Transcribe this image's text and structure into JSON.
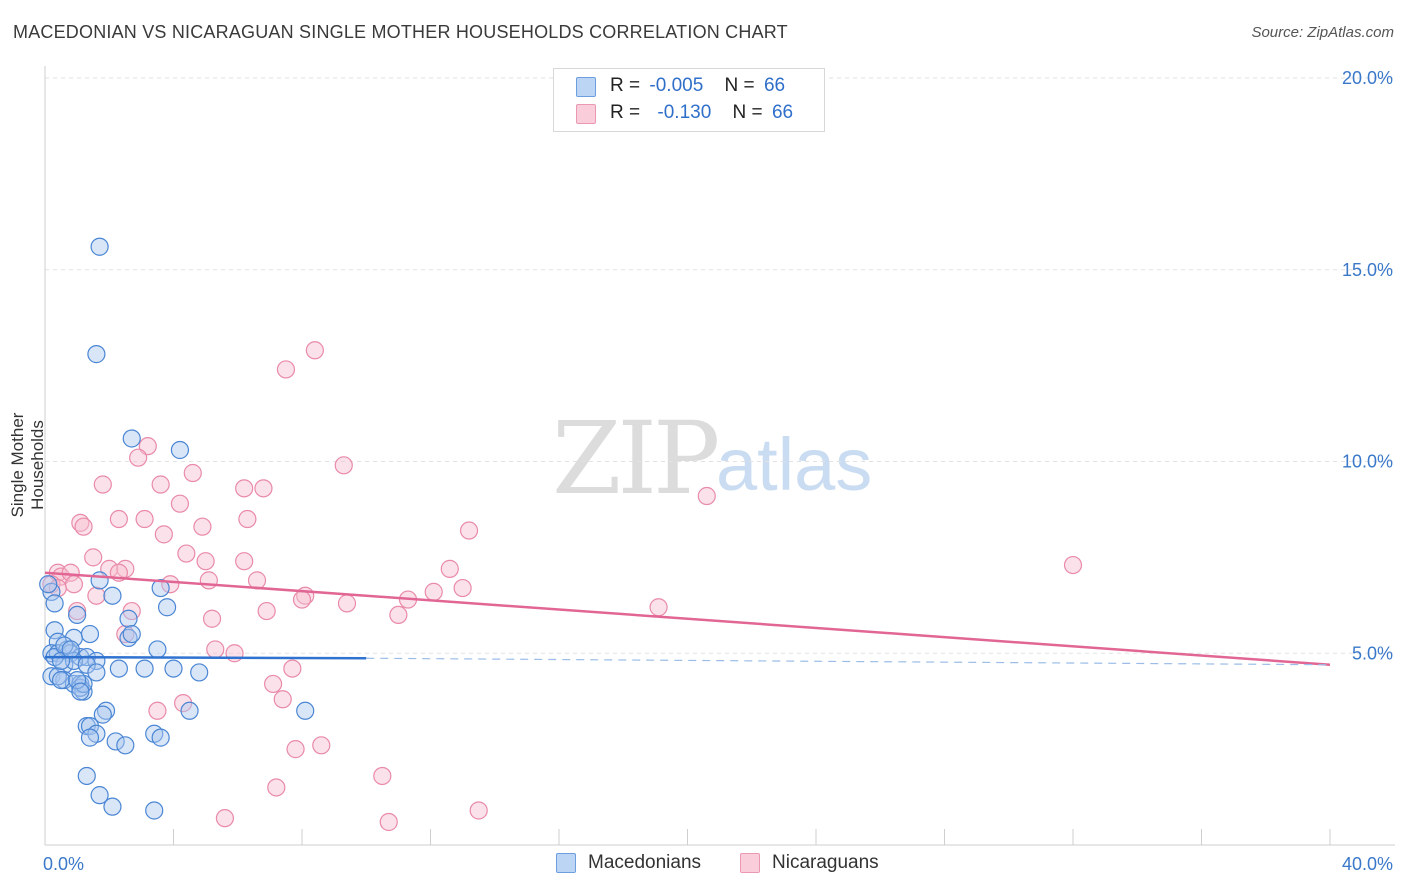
{
  "title": "MACEDONIAN VS NICARAGUAN SINGLE MOTHER HOUSEHOLDS CORRELATION CHART",
  "source": "Source: ZipAtlas.com",
  "watermark": {
    "zip": "ZIP",
    "atlas": "atlas"
  },
  "legend": {
    "row1": {
      "r_label": "R =",
      "r_value": "-0.005",
      "n_label": "N =",
      "n_value": "66"
    },
    "row2": {
      "r_label": "R =",
      "r_value": "-0.130",
      "n_label": "N =",
      "n_value": "66"
    }
  },
  "bottom_legend": {
    "macedonians": "Macedonians",
    "nicaraguans": "Nicaraguans"
  },
  "colors": {
    "blue_fill": "#aac8ef",
    "blue_stroke": "#4a86d4",
    "blue_line": "#2f72d0",
    "pink_fill": "#f7bfd0",
    "pink_stroke": "#e98aa8",
    "pink_line": "#e26694",
    "tick": "#3a78c9"
  },
  "chart_data": {
    "type": "scatter",
    "title": "MACEDONIAN VS NICARAGUAN SINGLE MOTHER HOUSEHOLDS CORRELATION CHART",
    "xlabel": "",
    "ylabel": "Single Mother Households",
    "xlim": [
      0,
      40
    ],
    "ylim": [
      0,
      20
    ],
    "x_tick_labels": [
      "0.0%",
      "40.0%"
    ],
    "y_ticks": [
      5,
      10,
      15,
      20
    ],
    "y_tick_labels": [
      "5.0%",
      "10.0%",
      "15.0%",
      "20.0%"
    ],
    "series": [
      {
        "name": "Macedonians",
        "r": -0.005,
        "n": 66,
        "trend": {
          "x0": 0,
          "y0": 4.9,
          "x1": 10,
          "y1": 4.87,
          "dashed_to_x": 40,
          "dashed_to_y": 4.7
        },
        "points": [
          [
            1.7,
            15.6
          ],
          [
            1.6,
            12.8
          ],
          [
            2.7,
            10.6
          ],
          [
            4.2,
            10.3
          ],
          [
            0.2,
            6.6
          ],
          [
            0.3,
            6.3
          ],
          [
            0.1,
            6.8
          ],
          [
            1.7,
            6.9
          ],
          [
            2.1,
            6.5
          ],
          [
            3.6,
            6.7
          ],
          [
            3.8,
            6.2
          ],
          [
            1.0,
            6.0
          ],
          [
            2.6,
            5.9
          ],
          [
            0.3,
            5.6
          ],
          [
            0.9,
            5.4
          ],
          [
            0.4,
            5.3
          ],
          [
            1.4,
            5.5
          ],
          [
            0.2,
            5.0
          ],
          [
            0.4,
            5.0
          ],
          [
            0.7,
            5.1
          ],
          [
            0.8,
            5.0
          ],
          [
            1.1,
            4.9
          ],
          [
            1.3,
            4.9
          ],
          [
            1.6,
            4.8
          ],
          [
            2.6,
            5.4
          ],
          [
            3.5,
            5.1
          ],
          [
            0.6,
            4.7
          ],
          [
            0.9,
            4.8
          ],
          [
            1.3,
            4.7
          ],
          [
            2.3,
            4.6
          ],
          [
            3.1,
            4.6
          ],
          [
            4.0,
            4.6
          ],
          [
            4.8,
            4.5
          ],
          [
            1.6,
            4.5
          ],
          [
            0.2,
            4.4
          ],
          [
            0.6,
            4.3
          ],
          [
            0.4,
            4.4
          ],
          [
            0.9,
            4.2
          ],
          [
            1.1,
            4.2
          ],
          [
            1.2,
            4.0
          ],
          [
            1.1,
            4.1
          ],
          [
            1.2,
            4.2
          ],
          [
            1.9,
            3.5
          ],
          [
            1.8,
            3.4
          ],
          [
            4.5,
            3.5
          ],
          [
            8.1,
            3.5
          ],
          [
            1.3,
            3.1
          ],
          [
            1.4,
            3.1
          ],
          [
            1.6,
            2.9
          ],
          [
            1.4,
            2.8
          ],
          [
            2.2,
            2.7
          ],
          [
            2.5,
            2.6
          ],
          [
            3.4,
            2.9
          ],
          [
            3.6,
            2.8
          ],
          [
            1.3,
            1.8
          ],
          [
            1.7,
            1.3
          ],
          [
            2.1,
            1.0
          ],
          [
            3.4,
            0.9
          ],
          [
            0.5,
            4.3
          ],
          [
            0.3,
            4.9
          ],
          [
            1.0,
            4.3
          ],
          [
            0.6,
            5.2
          ],
          [
            2.7,
            5.5
          ],
          [
            0.5,
            4.8
          ],
          [
            1.1,
            4.0
          ],
          [
            0.8,
            5.1
          ]
        ]
      },
      {
        "name": "Nicaraguans",
        "r": -0.13,
        "n": 66,
        "trend": {
          "x0": 0,
          "y0": 7.1,
          "x1": 40,
          "y1": 4.7
        },
        "points": [
          [
            8.4,
            12.9
          ],
          [
            7.5,
            12.4
          ],
          [
            3.2,
            10.4
          ],
          [
            2.9,
            10.1
          ],
          [
            9.3,
            9.9
          ],
          [
            4.6,
            9.7
          ],
          [
            1.8,
            9.4
          ],
          [
            3.6,
            9.4
          ],
          [
            6.2,
            9.3
          ],
          [
            6.8,
            9.3
          ],
          [
            20.6,
            9.1
          ],
          [
            4.2,
            8.9
          ],
          [
            2.3,
            8.5
          ],
          [
            3.1,
            8.5
          ],
          [
            6.3,
            8.5
          ],
          [
            1.1,
            8.4
          ],
          [
            1.2,
            8.3
          ],
          [
            4.9,
            8.3
          ],
          [
            13.2,
            8.2
          ],
          [
            3.7,
            8.1
          ],
          [
            4.4,
            7.6
          ],
          [
            5.0,
            7.4
          ],
          [
            6.2,
            7.4
          ],
          [
            1.5,
            7.5
          ],
          [
            0.4,
            7.1
          ],
          [
            0.5,
            7.0
          ],
          [
            0.8,
            7.1
          ],
          [
            2.0,
            7.2
          ],
          [
            2.5,
            7.2
          ],
          [
            12.6,
            7.2
          ],
          [
            32.0,
            7.3
          ],
          [
            5.1,
            6.9
          ],
          [
            6.6,
            6.9
          ],
          [
            0.2,
            6.8
          ],
          [
            0.4,
            6.7
          ],
          [
            3.9,
            6.8
          ],
          [
            12.1,
            6.6
          ],
          [
            13.0,
            6.7
          ],
          [
            8.1,
            6.5
          ],
          [
            8.0,
            6.4
          ],
          [
            11.3,
            6.4
          ],
          [
            9.4,
            6.3
          ],
          [
            19.1,
            6.2
          ],
          [
            1.6,
            6.5
          ],
          [
            1.0,
            6.1
          ],
          [
            2.7,
            6.1
          ],
          [
            6.9,
            6.1
          ],
          [
            5.2,
            5.9
          ],
          [
            11.0,
            6.0
          ],
          [
            2.5,
            5.5
          ],
          [
            5.3,
            5.1
          ],
          [
            5.9,
            5.0
          ],
          [
            7.7,
            4.6
          ],
          [
            7.1,
            4.2
          ],
          [
            7.4,
            3.8
          ],
          [
            4.3,
            3.7
          ],
          [
            3.5,
            3.5
          ],
          [
            8.6,
            2.6
          ],
          [
            7.8,
            2.5
          ],
          [
            10.5,
            1.8
          ],
          [
            7.2,
            1.5
          ],
          [
            5.6,
            0.7
          ],
          [
            10.7,
            0.6
          ],
          [
            13.5,
            0.9
          ],
          [
            2.3,
            7.1
          ],
          [
            0.9,
            6.8
          ]
        ]
      }
    ]
  }
}
